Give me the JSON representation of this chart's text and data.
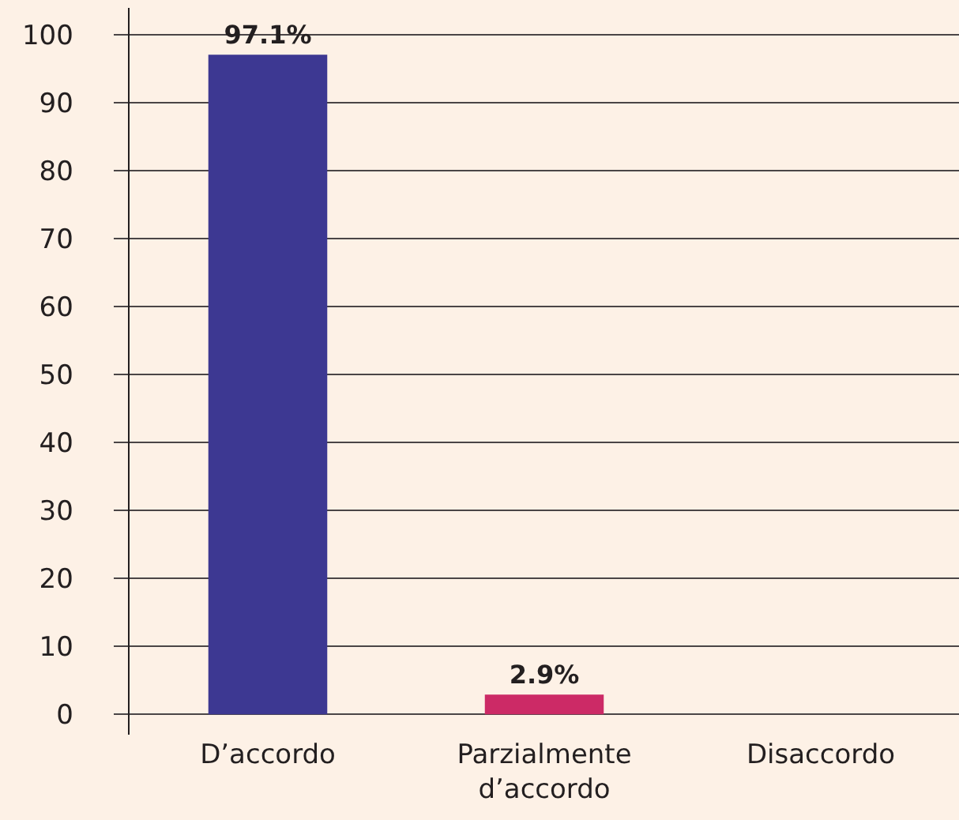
{
  "chart_data": {
    "type": "bar",
    "categories": [
      "D’accordo",
      "Parzialmente\nd’accordo",
      "Disaccordo"
    ],
    "values": [
      97.1,
      2.9,
      0
    ],
    "colors": [
      "#3d3892",
      "#cc2a66",
      "#cc2a66"
    ],
    "value_labels": [
      "97.1%",
      "2.9%",
      null
    ],
    "ylim": [
      -3,
      104
    ],
    "yticks": [
      0,
      10,
      20,
      30,
      40,
      50,
      60,
      70,
      80,
      90,
      100
    ],
    "grid": "y"
  }
}
